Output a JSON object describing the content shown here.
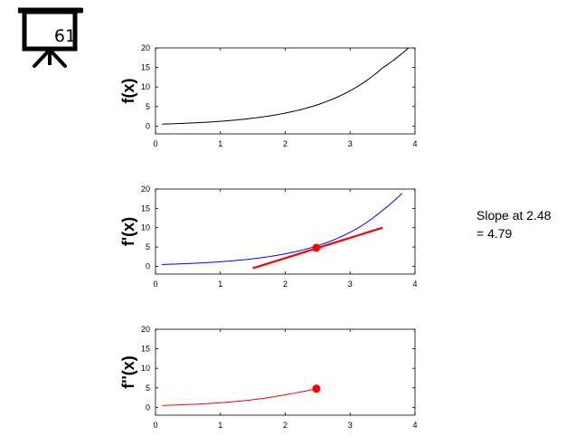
{
  "badge": {
    "label": "61"
  },
  "annotation": {
    "line1": "Slope at 2.48",
    "line2": "= 4.79"
  },
  "chart_data": [
    {
      "type": "line",
      "ylabel": "f(x)",
      "xlim": [
        0,
        4
      ],
      "ylim": [
        -2,
        20
      ],
      "xticks": [
        "0",
        "1",
        "2",
        "3",
        "4"
      ],
      "yticks": [
        "0",
        "5",
        "10",
        "15",
        "20"
      ],
      "series": [
        {
          "color": "#000000",
          "x": [
            0.1,
            0.5,
            1.0,
            1.5,
            2.0,
            2.5,
            3.0,
            3.5,
            3.9
          ],
          "y": [
            0.5,
            0.74,
            1.22,
            2.01,
            3.32,
            5.47,
            9.03,
            14.9,
            20.0
          ]
        }
      ]
    },
    {
      "type": "line",
      "ylabel": "f'(x)",
      "xlim": [
        0,
        4
      ],
      "ylim": [
        -2,
        20
      ],
      "xticks": [
        "0",
        "1",
        "2",
        "3",
        "4"
      ],
      "yticks": [
        "0",
        "5",
        "10",
        "15",
        "20"
      ],
      "series": [
        {
          "color": "#0000ff",
          "x": [
            0.1,
            0.5,
            1.0,
            1.5,
            2.0,
            2.5,
            3.0,
            3.5,
            3.8
          ],
          "y": [
            0.48,
            0.72,
            1.19,
            1.96,
            3.24,
            5.34,
            8.81,
            14.5,
            18.9
          ]
        }
      ],
      "tangent": {
        "color": "#ff0000",
        "x": [
          1.5,
          3.5
        ],
        "y": [
          -0.5,
          10.0
        ]
      },
      "point": {
        "color": "#ff0000",
        "x": 2.48,
        "y": 4.79
      }
    },
    {
      "type": "line",
      "ylabel": "f''(x)",
      "xlim": [
        0,
        4
      ],
      "ylim": [
        -2,
        20
      ],
      "xticks": [
        "0",
        "1",
        "2",
        "3",
        "4"
      ],
      "yticks": [
        "0",
        "5",
        "10",
        "15",
        "20"
      ],
      "series": [
        {
          "color": "#ff0000",
          "x": [
            0.1,
            0.5,
            1.0,
            1.5,
            2.0,
            2.48
          ],
          "y": [
            0.48,
            0.72,
            1.19,
            1.96,
            3.24,
            4.79
          ]
        }
      ],
      "point": {
        "color": "#ff0000",
        "x": 2.48,
        "y": 4.79
      }
    }
  ]
}
